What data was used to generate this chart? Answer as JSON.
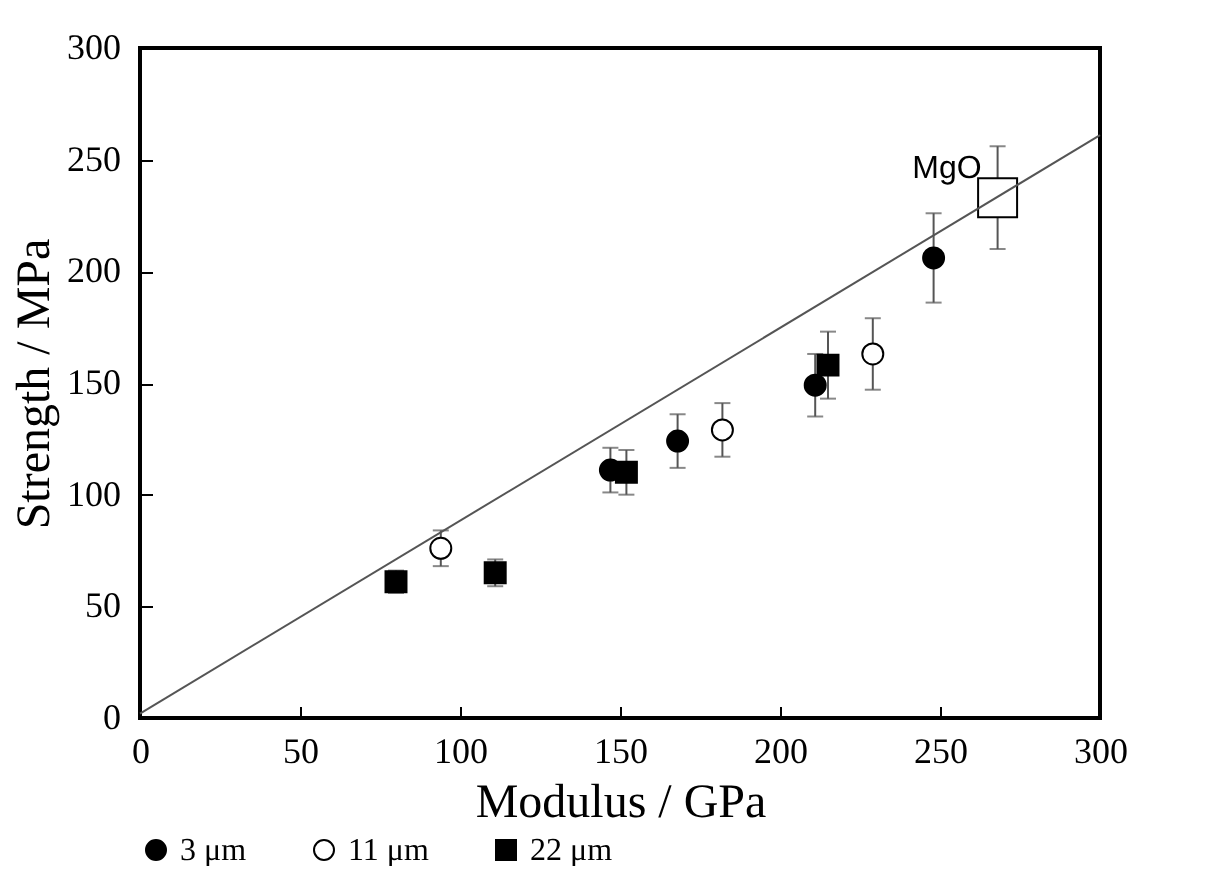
{
  "chart_data": {
    "type": "scatter",
    "xlabel": "Modulus / GPa",
    "ylabel": "Strength / MPa",
    "xlim": [
      0,
      300
    ],
    "ylim": [
      0,
      300
    ],
    "xticks": [
      0,
      50,
      100,
      150,
      200,
      250,
      300
    ],
    "yticks": [
      0,
      50,
      100,
      150,
      200,
      250,
      300
    ],
    "legend": "bottom",
    "series": [
      {
        "name": "3 μm",
        "color": "#000000",
        "marker": "circle",
        "x": [
          147,
          168,
          211,
          248
        ],
        "values": [
          111,
          124,
          149,
          206
        ],
        "errors": [
          10,
          12,
          14,
          20
        ]
      },
      {
        "name": "11 μm",
        "color": "#ffffff",
        "marker": "circle",
        "x": [
          94,
          182,
          229
        ],
        "values": [
          76,
          129,
          163
        ],
        "errors": [
          8,
          12,
          16
        ]
      },
      {
        "name": "22 μm",
        "color": "#000000",
        "marker": "square",
        "x": [
          80,
          111,
          152,
          215
        ],
        "values": [
          61,
          65,
          110,
          158
        ],
        "errors": [
          5,
          6,
          10,
          15
        ]
      },
      {
        "color": "#ffffff",
        "marker": "square",
        "x": [
          268
        ],
        "values": [
          233
        ],
        "errors": [
          23
        ]
      },
      {
        "type": "line",
        "color": "#555555",
        "x": [
          0,
          300
        ],
        "values": [
          2,
          261
        ]
      }
    ],
    "annotations": [
      {
        "text": "MgO",
        "x": 268,
        "y": 233
      }
    ]
  }
}
